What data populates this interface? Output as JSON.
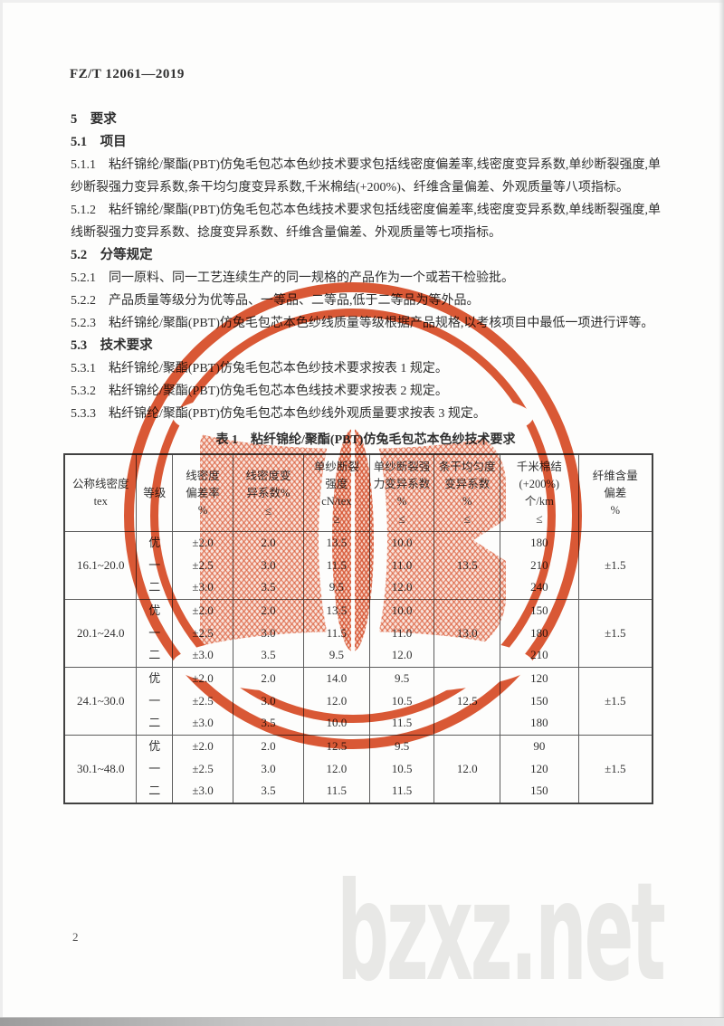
{
  "page": {
    "standard_code": "FZ/T 12061—2019",
    "page_number": "2",
    "watermark": "bzxz.net",
    "stamp_color": "#d9502a",
    "paper_color": "#fdfdfc"
  },
  "sections": {
    "h5": "5　要求",
    "h51": "5.1　项目",
    "p511": "5.1.1　粘纤锦纶/聚酯(PBT)仿兔毛包芯本色纱技术要求包括线密度偏差率,线密度变异系数,单纱断裂强度,单纱断裂强力变异系数,条干均匀度变异系数,千米棉结(+200%)、纤维含量偏差、外观质量等八项指标。",
    "p512": "5.1.2　粘纤锦纶/聚酯(PBT)仿兔毛包芯本色线技术要求包括线密度偏差率,线密度变异系数,单线断裂强度,单线断裂强力变异系数、捻度变异系数、纤维含量偏差、外观质量等七项指标。",
    "h52": "5.2　分等规定",
    "p521": "5.2.1　同一原料、同一工艺连续生产的同一规格的产品作为一个或若干检验批。",
    "p522": "5.2.2　产品质量等级分为优等品、一等品、二等品,低于二等品为等外品。",
    "p523": "5.2.3　粘纤锦纶/聚酯(PBT)仿兔毛包芯本色纱线质量等级根据产品规格,以考核项目中最低一项进行评等。",
    "h53": "5.3　技术要求",
    "p531": "5.3.1　粘纤锦纶/聚酯(PBT)仿兔毛包芯本色纱技术要求按表 1 规定。",
    "p532": "5.3.2　粘纤锦纶/聚酯(PBT)仿兔毛包芯本色线技术要求按表 2 规定。",
    "p533": "5.3.3　粘纤锦纶/聚酯(PBT)仿兔毛包芯本色纱线外观质量要求按表 3 规定。"
  },
  "table": {
    "title": "表 1　粘纤锦纶/聚酯(PBT)仿兔毛包芯本色纱技术要求",
    "columns": [
      {
        "id": "range",
        "lines": [
          "公称线密度",
          "tex"
        ]
      },
      {
        "id": "grade",
        "lines": [
          "等级"
        ]
      },
      {
        "id": "density_dev",
        "lines": [
          "线密度",
          "偏差率",
          "%"
        ]
      },
      {
        "id": "density_cv",
        "lines": [
          "线密度变",
          "异系数%",
          "≤"
        ]
      },
      {
        "id": "strength",
        "lines": [
          "单纱断裂",
          "强度",
          "cN/tex",
          "≥"
        ]
      },
      {
        "id": "strength_cv",
        "lines": [
          "单纱断裂强",
          "力变异系数",
          "%",
          "≤"
        ]
      },
      {
        "id": "evenness_cv",
        "lines": [
          "条干均匀度",
          "变异系数",
          "%",
          "≤"
        ]
      },
      {
        "id": "neps",
        "lines": [
          "千米棉结",
          "(+200%)",
          "个/km",
          "≤"
        ]
      },
      {
        "id": "fiber_dev",
        "lines": [
          "纤维含量",
          "偏差",
          "%"
        ]
      }
    ],
    "grades": [
      "优",
      "一",
      "二"
    ],
    "groups": [
      {
        "range": "16.1~20.0",
        "density_dev": [
          "±2.0",
          "±2.5",
          "±3.0"
        ],
        "density_cv": [
          "2.0",
          "3.0",
          "3.5"
        ],
        "strength": [
          "13.5",
          "11.5",
          "9.5"
        ],
        "strength_cv": [
          "10.0",
          "11.0",
          "12.0"
        ],
        "evenness_cv": "13.5",
        "neps": [
          "180",
          "210",
          "240"
        ],
        "fiber_dev": "±1.5"
      },
      {
        "range": "20.1~24.0",
        "density_dev": [
          "±2.0",
          "±2.5",
          "±3.0"
        ],
        "density_cv": [
          "2.0",
          "3.0",
          "3.5"
        ],
        "strength": [
          "13.5",
          "11.5",
          "9.5"
        ],
        "strength_cv": [
          "10.0",
          "11.0",
          "12.0"
        ],
        "evenness_cv": "13.0",
        "neps": [
          "150",
          "180",
          "210"
        ],
        "fiber_dev": "±1.5"
      },
      {
        "range": "24.1~30.0",
        "density_dev": [
          "±2.0",
          "±2.5",
          "±3.0"
        ],
        "density_cv": [
          "2.0",
          "3.0",
          "3.5"
        ],
        "strength": [
          "14.0",
          "12.0",
          "10.0"
        ],
        "strength_cv": [
          "9.5",
          "10.5",
          "11.5"
        ],
        "evenness_cv": "12.5",
        "neps": [
          "120",
          "150",
          "180"
        ],
        "fiber_dev": "±1.5"
      },
      {
        "range": "30.1~48.0",
        "density_dev": [
          "±2.0",
          "±2.5",
          "±3.0"
        ],
        "density_cv": [
          "2.0",
          "3.0",
          "3.5"
        ],
        "strength": [
          "12.5",
          "12.0",
          "11.5"
        ],
        "strength_cv": [
          "9.5",
          "10.5",
          "11.5"
        ],
        "evenness_cv": "12.0",
        "neps": [
          "90",
          "120",
          "150"
        ],
        "fiber_dev": "±1.5"
      }
    ]
  }
}
